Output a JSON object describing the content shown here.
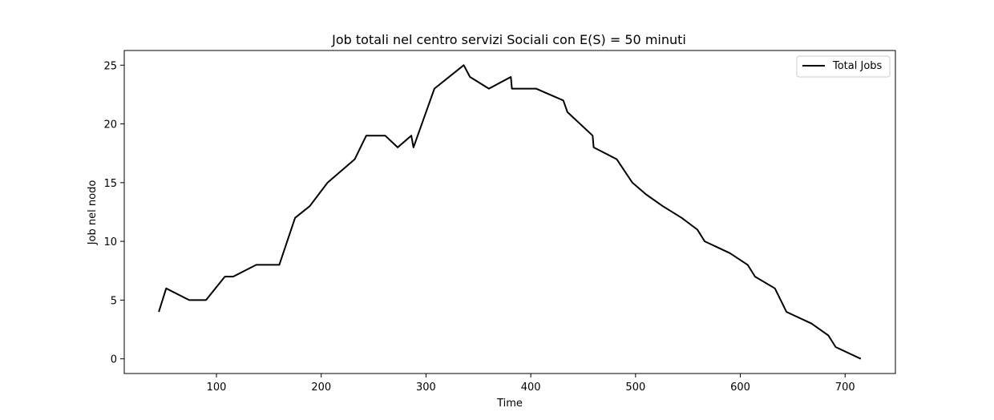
{
  "chart_data": {
    "type": "line",
    "title": "Job totali nel centro servizi Sociali con E(S) = 50 minuti",
    "xlabel": "Time",
    "ylabel": "Job nel nodo",
    "xlim": [
      12,
      748
    ],
    "ylim": [
      -1.25,
      26.25
    ],
    "xticks": [
      100,
      200,
      300,
      400,
      500,
      600,
      700
    ],
    "yticks": [
      0,
      5,
      10,
      15,
      20,
      25
    ],
    "grid": false,
    "legend": {
      "location": "upper right",
      "entries": [
        "Total Jobs"
      ]
    },
    "series": [
      {
        "name": "Total Jobs",
        "color": "#000000",
        "x": [
          45,
          52,
          74,
          90,
          108,
          116,
          138,
          160,
          175,
          189,
          206,
          232,
          243,
          261,
          273,
          286,
          288,
          308,
          336,
          342,
          360,
          381,
          382,
          405,
          431,
          435,
          459,
          460,
          482,
          497,
          510,
          526,
          544,
          559,
          566,
          590,
          607,
          614,
          633,
          644,
          668,
          684,
          691,
          715
        ],
        "y": [
          4,
          6,
          5,
          5,
          7,
          7,
          8,
          8,
          12,
          13,
          15,
          17,
          19,
          19,
          18,
          19,
          18,
          23,
          25,
          24,
          23,
          24,
          23,
          23,
          22,
          21,
          19,
          18,
          17,
          15,
          14,
          13,
          12,
          11,
          10,
          9,
          8,
          7,
          6,
          4,
          3,
          2,
          1,
          0
        ]
      }
    ]
  }
}
